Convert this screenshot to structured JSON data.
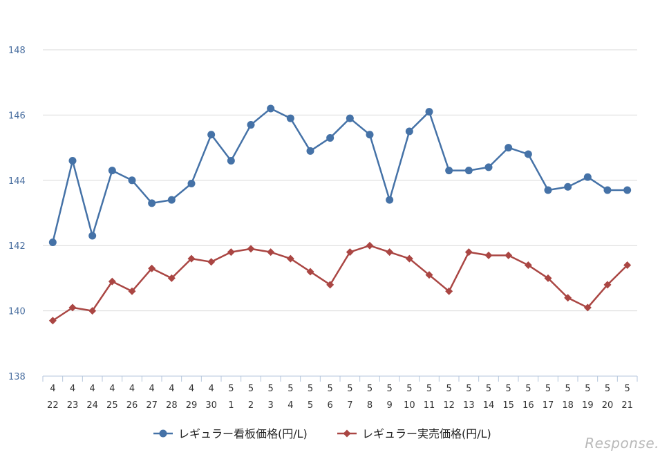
{
  "chart_data": {
    "type": "line",
    "title": "",
    "xlabel": "",
    "ylabel": "",
    "ylim": [
      138,
      148
    ],
    "yticks": [
      138,
      140,
      142,
      144,
      146,
      148
    ],
    "grid": true,
    "legend_position": "bottom-center",
    "categories": [
      {
        "month": "4",
        "day": "22"
      },
      {
        "month": "4",
        "day": "23"
      },
      {
        "month": "4",
        "day": "24"
      },
      {
        "month": "4",
        "day": "25"
      },
      {
        "month": "4",
        "day": "26"
      },
      {
        "month": "4",
        "day": "27"
      },
      {
        "month": "4",
        "day": "28"
      },
      {
        "month": "4",
        "day": "29"
      },
      {
        "month": "4",
        "day": "30"
      },
      {
        "month": "5",
        "day": "1"
      },
      {
        "month": "5",
        "day": "2"
      },
      {
        "month": "5",
        "day": "3"
      },
      {
        "month": "5",
        "day": "4"
      },
      {
        "month": "5",
        "day": "5"
      },
      {
        "month": "5",
        "day": "6"
      },
      {
        "month": "5",
        "day": "7"
      },
      {
        "month": "5",
        "day": "8"
      },
      {
        "month": "5",
        "day": "9"
      },
      {
        "month": "5",
        "day": "10"
      },
      {
        "month": "5",
        "day": "11"
      },
      {
        "month": "5",
        "day": "12"
      },
      {
        "month": "5",
        "day": "13"
      },
      {
        "month": "5",
        "day": "14"
      },
      {
        "month": "5",
        "day": "15"
      },
      {
        "month": "5",
        "day": "16"
      },
      {
        "month": "5",
        "day": "17"
      },
      {
        "month": "5",
        "day": "18"
      },
      {
        "month": "5",
        "day": "19"
      },
      {
        "month": "5",
        "day": "20"
      },
      {
        "month": "5",
        "day": "21"
      }
    ],
    "series": [
      {
        "name": "レギュラー看板価格(円/L)",
        "color": "#4572a7",
        "marker": "circle",
        "values": [
          142.1,
          144.6,
          142.3,
          144.3,
          144.0,
          143.3,
          143.4,
          143.9,
          145.4,
          144.6,
          145.7,
          146.2,
          145.9,
          144.9,
          145.3,
          145.9,
          145.4,
          143.4,
          145.5,
          146.1,
          144.3,
          144.3,
          144.4,
          145.0,
          144.8,
          143.7,
          143.8,
          144.1,
          143.7,
          143.7
        ]
      },
      {
        "name": "レギュラー実売価格(円/L)",
        "color": "#aa4643",
        "marker": "diamond",
        "values": [
          139.7,
          140.1,
          140.0,
          140.9,
          140.6,
          141.3,
          141.0,
          141.6,
          141.5,
          141.8,
          141.9,
          141.8,
          141.6,
          141.2,
          140.8,
          141.8,
          142.0,
          141.8,
          141.6,
          141.1,
          140.6,
          141.8,
          141.7,
          141.7,
          141.4,
          141.0,
          140.4,
          140.1,
          140.8,
          141.4
        ]
      }
    ]
  },
  "watermark": "Response."
}
